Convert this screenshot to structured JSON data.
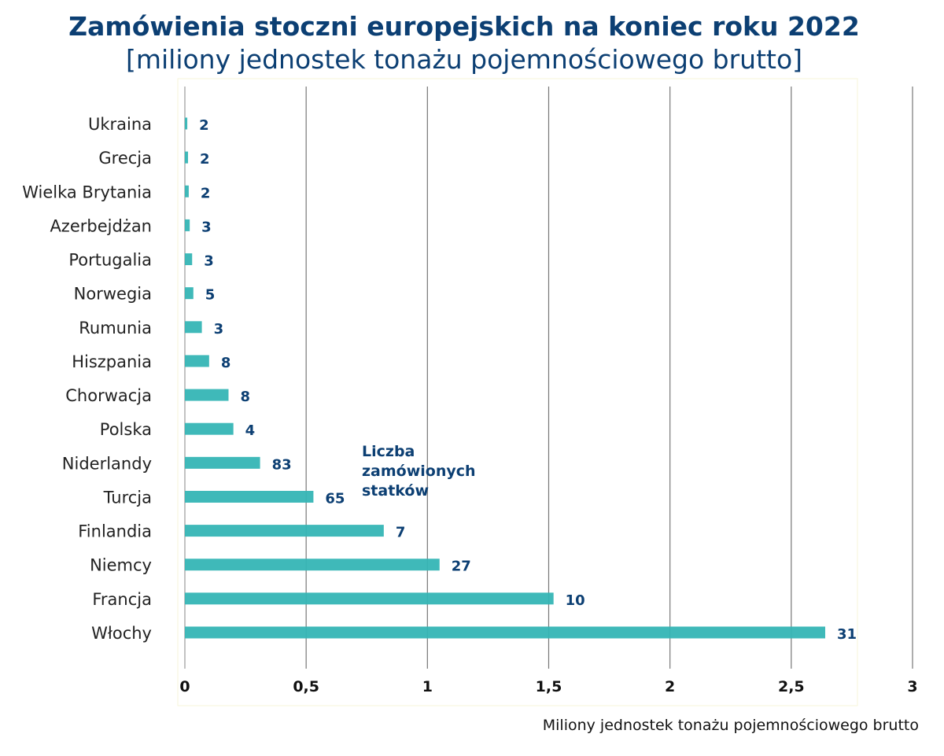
{
  "chart_data": {
    "type": "bar",
    "orientation": "horizontal",
    "title": "Zamówienia stoczni europejskich na koniec roku 2022",
    "subtitle": "[miliony jednostek tonażu pojemnościowego brutto]",
    "xlabel": "Miliony jednostek tonażu pojemnościowego brutto",
    "ylabel": "",
    "xlim": [
      0,
      3
    ],
    "ticks": [
      "0",
      "0,5",
      "1",
      "1,5",
      "2",
      "2,5",
      "3"
    ],
    "tick_values": [
      0,
      0.5,
      1,
      1.5,
      2,
      2.5,
      3
    ],
    "grid": true,
    "color": "#35b5b5",
    "annotation": [
      "Liczba",
      "zamówionych",
      "statków"
    ],
    "categories": [
      "Ukraina",
      "Grecja",
      "Wielka Brytania",
      "Azerbejdżan",
      "Portugalia",
      "Norwegia",
      "Rumunia",
      "Hiszpania",
      "Chorwacja",
      "Polska",
      "Niderlandy",
      "Turcja",
      "Finlandia",
      "Niemcy",
      "Francja",
      "Włochy"
    ],
    "values": [
      0.01,
      0.013,
      0.016,
      0.02,
      0.03,
      0.035,
      0.07,
      0.1,
      0.18,
      0.2,
      0.31,
      0.53,
      0.82,
      1.05,
      1.52,
      2.64
    ],
    "data_labels": [
      "2",
      "2",
      "2",
      "3",
      "3",
      "5",
      "3",
      "8",
      "8",
      "4",
      "83",
      "65",
      "7",
      "27",
      "10",
      "31"
    ]
  }
}
